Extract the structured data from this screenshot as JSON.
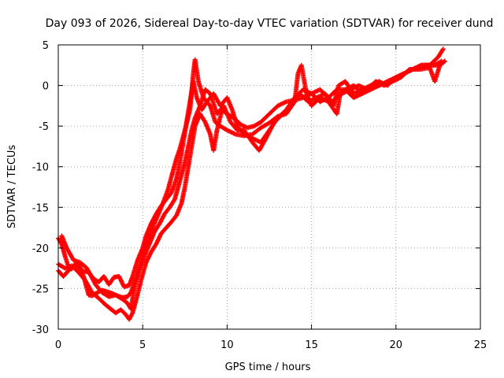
{
  "chart_data": {
    "type": "scatter",
    "title": "Day 093 of 2026, Sidereal Day-to-day VTEC variation (SDTVAR) for receiver dund",
    "xlabel": "GPS time / hours",
    "ylabel": "SDTVAR / TECUs",
    "xlim": [
      0,
      25
    ],
    "ylim": [
      -30,
      5
    ],
    "xticks": [
      "0",
      "5",
      "10",
      "15",
      "20",
      "25"
    ],
    "yticks": [
      "-30",
      "-25",
      "-20",
      "-15",
      "-10",
      "-5",
      "0",
      "5"
    ],
    "grid": true,
    "marker": "plus",
    "color": "#ff0000",
    "series": [
      {
        "values": [
          [
            0.0,
            -18.8
          ],
          [
            0.2,
            -19.5
          ],
          [
            0.4,
            -21.0
          ],
          [
            0.6,
            -22.3
          ],
          [
            0.8,
            -22.6
          ],
          [
            1.0,
            -22.0
          ],
          [
            1.2,
            -21.8
          ],
          [
            1.5,
            -23.5
          ],
          [
            1.8,
            -25.8
          ],
          [
            2.0,
            -25.9
          ],
          [
            2.3,
            -25.5
          ],
          [
            2.6,
            -25.2
          ],
          [
            2.9,
            -25.4
          ],
          [
            3.2,
            -25.6
          ],
          [
            3.5,
            -25.9
          ],
          [
            3.8,
            -26.1
          ],
          [
            4.1,
            -26.0
          ],
          [
            4.3,
            -25.5
          ],
          [
            4.5,
            -24.2
          ],
          [
            4.8,
            -22.4
          ],
          [
            5.0,
            -20.8
          ],
          [
            5.3,
            -19.0
          ],
          [
            5.6,
            -17.4
          ],
          [
            5.9,
            -16.0
          ],
          [
            6.2,
            -14.5
          ],
          [
            6.5,
            -12.8
          ],
          [
            6.8,
            -10.5
          ],
          [
            7.0,
            -9.0
          ],
          [
            7.2,
            -7.8
          ],
          [
            7.5,
            -5.5
          ],
          [
            7.8,
            -3.0
          ],
          [
            8.0,
            1.5
          ],
          [
            8.1,
            3.2
          ],
          [
            8.3,
            0.5
          ],
          [
            8.6,
            -1.5
          ],
          [
            9.0,
            -2.5
          ],
          [
            9.3,
            -4.5
          ],
          [
            9.6,
            -5.0
          ],
          [
            10.0,
            -5.5
          ],
          [
            10.5,
            -6.0
          ],
          [
            11.0,
            -6.2
          ],
          [
            11.5,
            -6.0
          ],
          [
            12.0,
            -5.2
          ],
          [
            12.5,
            -4.6
          ],
          [
            13.0,
            -3.8
          ],
          [
            13.5,
            -3.5
          ],
          [
            14.0,
            -2.0
          ],
          [
            14.2,
            1.5
          ],
          [
            14.4,
            2.5
          ],
          [
            14.7,
            -1.0
          ],
          [
            15.0,
            -2.5
          ],
          [
            15.5,
            -1.5
          ],
          [
            16.0,
            -2.0
          ],
          [
            16.5,
            -3.5
          ],
          [
            16.7,
            -1.0
          ],
          [
            17.0,
            -0.5
          ],
          [
            17.5,
            0.0
          ],
          [
            18.0,
            -1.0
          ],
          [
            18.5,
            0.0
          ],
          [
            19.0,
            0.5
          ],
          [
            19.5,
            0.0
          ],
          [
            20.0,
            1.0
          ],
          [
            20.5,
            1.5
          ],
          [
            21.0,
            2.0
          ],
          [
            21.5,
            2.5
          ],
          [
            22.0,
            2.5
          ],
          [
            22.5,
            3.5
          ],
          [
            22.8,
            4.5
          ]
        ]
      },
      {
        "values": [
          [
            0.0,
            -22.8
          ],
          [
            0.3,
            -23.5
          ],
          [
            0.6,
            -22.8
          ],
          [
            1.0,
            -22.0
          ],
          [
            1.4,
            -22.8
          ],
          [
            1.8,
            -23.0
          ],
          [
            2.1,
            -23.8
          ],
          [
            2.4,
            -24.2
          ],
          [
            2.7,
            -23.5
          ],
          [
            3.0,
            -24.5
          ],
          [
            3.3,
            -23.6
          ],
          [
            3.6,
            -23.5
          ],
          [
            3.9,
            -24.8
          ],
          [
            4.2,
            -24.6
          ],
          [
            4.4,
            -23.5
          ],
          [
            4.7,
            -21.5
          ],
          [
            5.0,
            -20.0
          ],
          [
            5.2,
            -18.5
          ],
          [
            5.5,
            -17.0
          ],
          [
            5.8,
            -15.8
          ],
          [
            6.1,
            -14.8
          ],
          [
            6.4,
            -14.0
          ],
          [
            6.7,
            -13.2
          ],
          [
            7.0,
            -11.5
          ],
          [
            7.2,
            -9.5
          ],
          [
            7.4,
            -7.0
          ],
          [
            7.6,
            -4.5
          ],
          [
            7.8,
            -2.0
          ],
          [
            8.0,
            0.5
          ],
          [
            8.2,
            -1.5
          ],
          [
            8.5,
            -3.0
          ],
          [
            8.8,
            -2.0
          ],
          [
            9.2,
            -1.0
          ],
          [
            9.6,
            -2.5
          ],
          [
            10.0,
            -1.5
          ],
          [
            10.3,
            -3.0
          ],
          [
            10.6,
            -5.0
          ],
          [
            11.0,
            -6.0
          ],
          [
            11.5,
            -6.5
          ],
          [
            12.0,
            -7.0
          ],
          [
            12.5,
            -5.5
          ],
          [
            13.0,
            -4.0
          ],
          [
            13.5,
            -3.0
          ],
          [
            14.0,
            -1.5
          ],
          [
            14.5,
            -0.5
          ],
          [
            15.0,
            -1.0
          ],
          [
            15.5,
            -0.5
          ],
          [
            16.0,
            -1.5
          ],
          [
            16.3,
            -2.5
          ],
          [
            16.6,
            0.0
          ],
          [
            17.0,
            0.5
          ],
          [
            17.5,
            -1.0
          ],
          [
            18.0,
            -0.5
          ],
          [
            18.5,
            0.0
          ],
          [
            19.0,
            0.0
          ],
          [
            19.5,
            0.5
          ],
          [
            20.0,
            1.0
          ],
          [
            20.5,
            1.5
          ],
          [
            21.0,
            2.0
          ],
          [
            21.5,
            2.5
          ],
          [
            22.0,
            2.5
          ],
          [
            22.5,
            2.5
          ],
          [
            22.9,
            3.0
          ]
        ]
      },
      {
        "values": [
          [
            0.0,
            -22.0
          ],
          [
            0.4,
            -22.5
          ],
          [
            0.8,
            -22.2
          ],
          [
            1.2,
            -23.0
          ],
          [
            1.6,
            -24.0
          ],
          [
            2.0,
            -25.5
          ],
          [
            2.4,
            -26.2
          ],
          [
            2.8,
            -27.0
          ],
          [
            3.1,
            -27.5
          ],
          [
            3.4,
            -28.0
          ],
          [
            3.7,
            -27.6
          ],
          [
            4.0,
            -28.2
          ],
          [
            4.2,
            -28.8
          ],
          [
            4.4,
            -28.0
          ],
          [
            4.6,
            -26.5
          ],
          [
            4.9,
            -24.0
          ],
          [
            5.2,
            -21.8
          ],
          [
            5.5,
            -20.5
          ],
          [
            5.8,
            -19.5
          ],
          [
            6.1,
            -18.2
          ],
          [
            6.4,
            -17.5
          ],
          [
            6.7,
            -16.8
          ],
          [
            7.0,
            -16.0
          ],
          [
            7.3,
            -14.5
          ],
          [
            7.5,
            -12.5
          ],
          [
            7.7,
            -10.0
          ],
          [
            7.9,
            -7.5
          ],
          [
            8.1,
            -5.0
          ],
          [
            8.4,
            -3.5
          ],
          [
            8.7,
            -4.5
          ],
          [
            9.0,
            -6.0
          ],
          [
            9.2,
            -8.0
          ],
          [
            9.4,
            -5.5
          ],
          [
            9.7,
            -3.0
          ],
          [
            10.0,
            -3.5
          ],
          [
            10.4,
            -4.0
          ],
          [
            10.8,
            -4.8
          ],
          [
            11.2,
            -5.2
          ],
          [
            11.6,
            -5.0
          ],
          [
            12.0,
            -4.5
          ],
          [
            12.5,
            -3.5
          ],
          [
            13.0,
            -2.5
          ],
          [
            13.5,
            -2.0
          ],
          [
            14.0,
            -1.8
          ],
          [
            14.5,
            -1.5
          ],
          [
            15.0,
            -1.0
          ],
          [
            15.5,
            -2.0
          ],
          [
            16.0,
            -1.5
          ],
          [
            16.5,
            -0.5
          ],
          [
            17.0,
            -0.5
          ],
          [
            17.5,
            -1.5
          ],
          [
            18.0,
            -1.0
          ],
          [
            18.5,
            -0.5
          ],
          [
            19.0,
            0.0
          ],
          [
            19.5,
            0.5
          ],
          [
            20.0,
            1.0
          ],
          [
            20.5,
            1.5
          ],
          [
            21.0,
            2.0
          ],
          [
            21.5,
            2.0
          ],
          [
            22.0,
            2.2
          ],
          [
            22.3,
            0.5
          ],
          [
            22.6,
            2.5
          ],
          [
            22.9,
            3.0
          ]
        ]
      },
      {
        "values": [
          [
            0.2,
            -18.5
          ],
          [
            0.5,
            -20.0
          ],
          [
            0.9,
            -21.5
          ],
          [
            1.3,
            -21.8
          ],
          [
            1.7,
            -22.5
          ],
          [
            2.2,
            -24.5
          ],
          [
            2.6,
            -25.5
          ],
          [
            3.0,
            -26.0
          ],
          [
            3.4,
            -25.8
          ],
          [
            3.8,
            -26.3
          ],
          [
            4.1,
            -26.8
          ],
          [
            4.3,
            -27.5
          ],
          [
            4.5,
            -25.0
          ],
          [
            4.8,
            -22.8
          ],
          [
            5.1,
            -21.0
          ],
          [
            5.4,
            -19.5
          ],
          [
            5.7,
            -18.0
          ],
          [
            6.0,
            -17.0
          ],
          [
            6.3,
            -15.8
          ],
          [
            6.6,
            -15.0
          ],
          [
            6.9,
            -14.0
          ],
          [
            7.1,
            -12.5
          ],
          [
            7.3,
            -11.0
          ],
          [
            7.5,
            -9.5
          ],
          [
            7.7,
            -7.5
          ],
          [
            7.9,
            -5.5
          ],
          [
            8.1,
            -4.0
          ],
          [
            8.4,
            -2.5
          ],
          [
            8.7,
            -0.5
          ],
          [
            9.0,
            -1.0
          ],
          [
            9.4,
            -3.5
          ],
          [
            9.8,
            -2.5
          ],
          [
            10.2,
            -4.5
          ],
          [
            10.6,
            -5.5
          ],
          [
            11.0,
            -5.5
          ],
          [
            11.5,
            -7.0
          ],
          [
            11.9,
            -8.0
          ],
          [
            12.3,
            -6.5
          ],
          [
            12.8,
            -4.5
          ],
          [
            13.3,
            -3.5
          ],
          [
            13.8,
            -2.5
          ],
          [
            14.3,
            -1.0
          ],
          [
            14.8,
            -2.0
          ],
          [
            15.3,
            -1.5
          ],
          [
            15.8,
            -1.0
          ],
          [
            16.2,
            -2.0
          ],
          [
            16.8,
            -1.0
          ],
          [
            17.3,
            -0.5
          ],
          [
            17.8,
            0.0
          ],
          [
            18.3,
            -0.5
          ],
          [
            18.8,
            0.5
          ],
          [
            19.3,
            0.0
          ],
          [
            19.8,
            0.5
          ],
          [
            20.3,
            1.0
          ],
          [
            20.8,
            2.0
          ],
          [
            21.3,
            2.0
          ],
          [
            21.8,
            2.5
          ],
          [
            22.3,
            2.5
          ],
          [
            22.7,
            3.0
          ]
        ]
      }
    ]
  }
}
